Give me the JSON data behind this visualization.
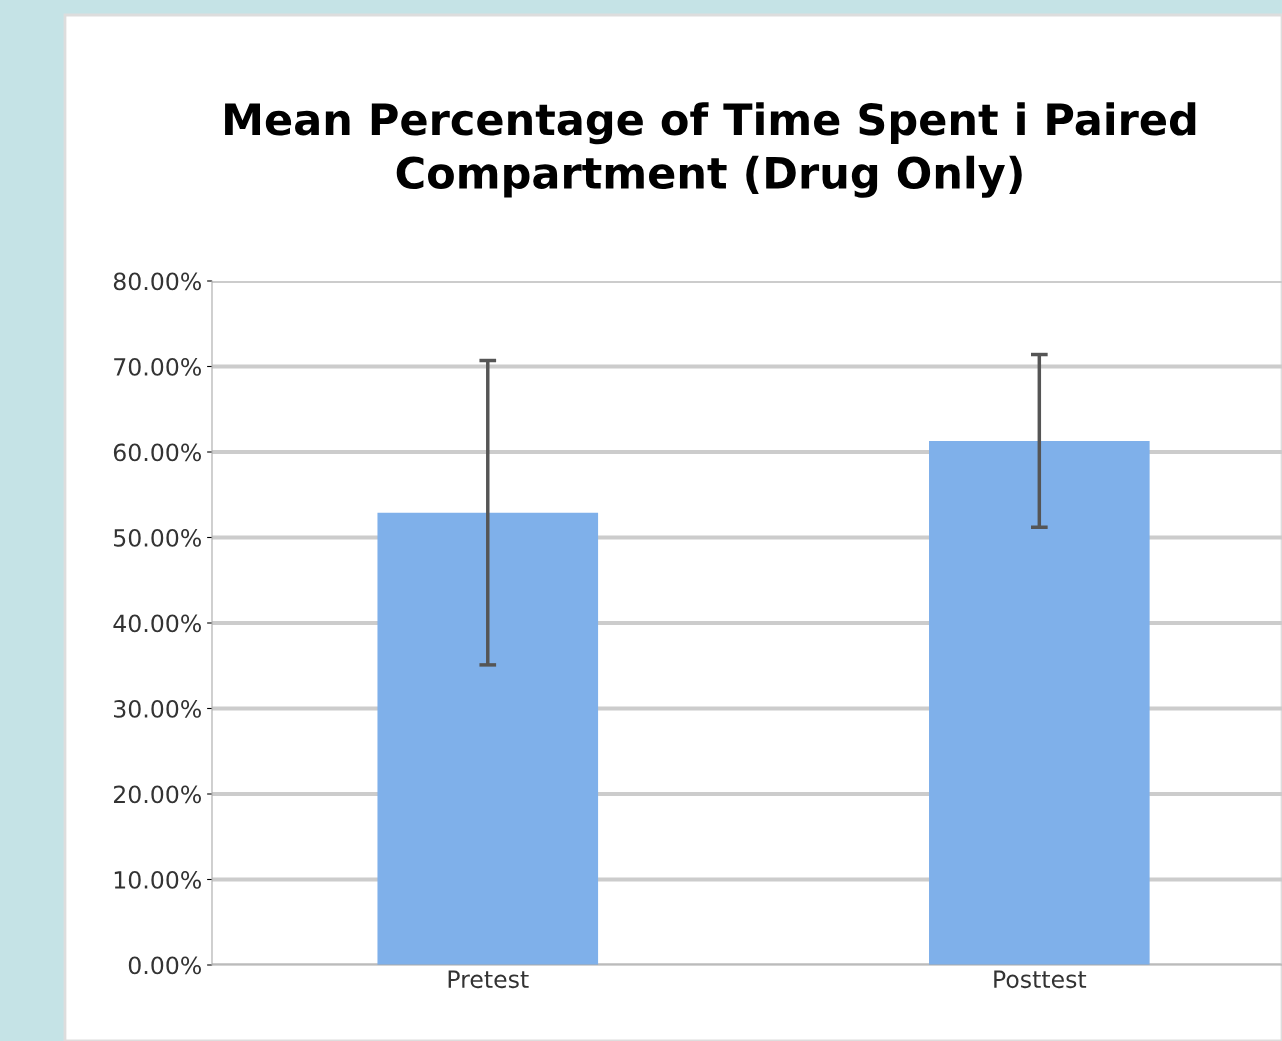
{
  "chart_data": {
    "type": "bar",
    "title": "Mean Percentage of Time Spent i Paired\nCompartment (Drug Only)",
    "categories": [
      "Pretest",
      "Posttest"
    ],
    "series": [
      {
        "color": "#7fb0ea",
        "values": [
          52.9,
          61.3
        ],
        "errors": [
          17.8,
          10.1
        ]
      }
    ],
    "ylim": [
      0,
      80
    ],
    "yticks": [
      {
        "value": 0,
        "label": "0.00%"
      },
      {
        "value": 10,
        "label": "10.00%"
      },
      {
        "value": 20,
        "label": "20.00%"
      },
      {
        "value": 30,
        "label": "30.00%"
      },
      {
        "value": 40,
        "label": "40.00%"
      },
      {
        "value": 50,
        "label": "50.00%"
      },
      {
        "value": 60,
        "label": "60.00%"
      },
      {
        "value": 70,
        "label": "70.00%"
      },
      {
        "value": 80,
        "label": "80.00%"
      }
    ],
    "grid": "y",
    "legend": false
  }
}
